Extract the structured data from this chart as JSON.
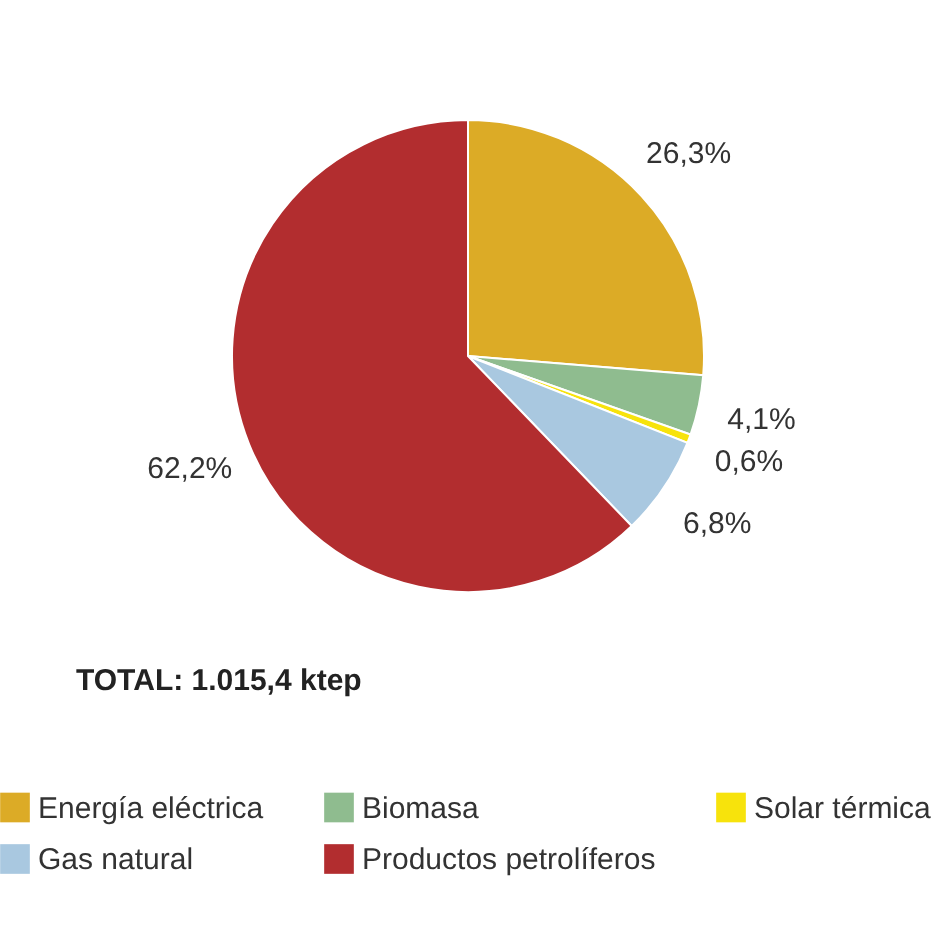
{
  "chart_data": {
    "type": "pie",
    "categories": [
      "Energía eléctrica",
      "Biomasa",
      "Solar térmica",
      "Gas natural",
      "Productos petrolíferos"
    ],
    "values": [
      26.3,
      4.1,
      0.6,
      6.8,
      62.2
    ],
    "value_labels": [
      "26,3%",
      "4,1%",
      "0,6%",
      "6,8%",
      "62,2%"
    ],
    "colors": [
      "#dcab26",
      "#8fbc8f",
      "#f7e30c",
      "#a9c8e0",
      "#b22d2f"
    ],
    "annotations": [
      "TOTAL: 1.015,4 ktep"
    ],
    "legend": "bottom"
  }
}
